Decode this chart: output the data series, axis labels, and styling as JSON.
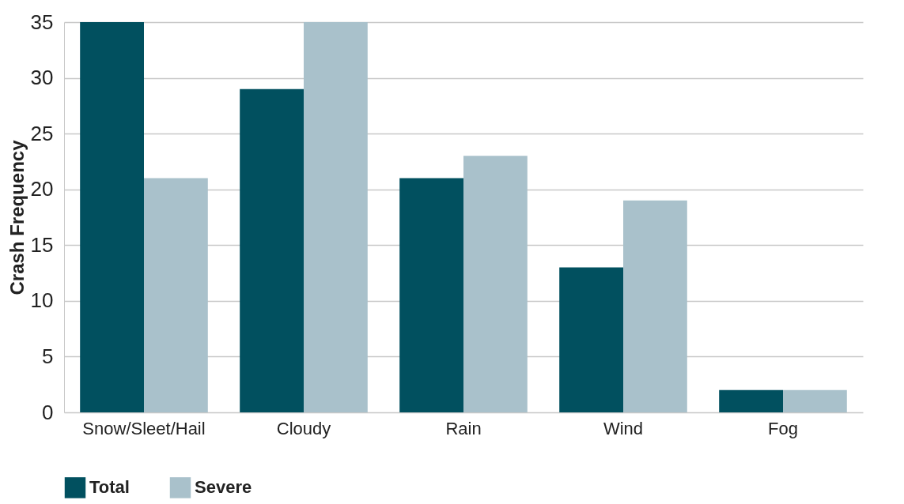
{
  "chart_data": {
    "type": "bar",
    "ylabel": "Crash Frequency",
    "categories": [
      "Snow/Sleet/Hail",
      "Cloudy",
      "Rain",
      "Wind",
      "Fog"
    ],
    "series": [
      {
        "name": "Total",
        "color": "#01505f",
        "values": [
          35,
          29,
          21,
          13,
          2
        ]
      },
      {
        "name": "Severe",
        "color": "#a9c1cb",
        "values": [
          21,
          35,
          23,
          19,
          2
        ]
      }
    ],
    "ylim": [
      0,
      35
    ],
    "yticks": [
      0,
      5,
      10,
      15,
      20,
      25,
      30,
      35
    ],
    "grid": "y",
    "legend": "bottom"
  }
}
